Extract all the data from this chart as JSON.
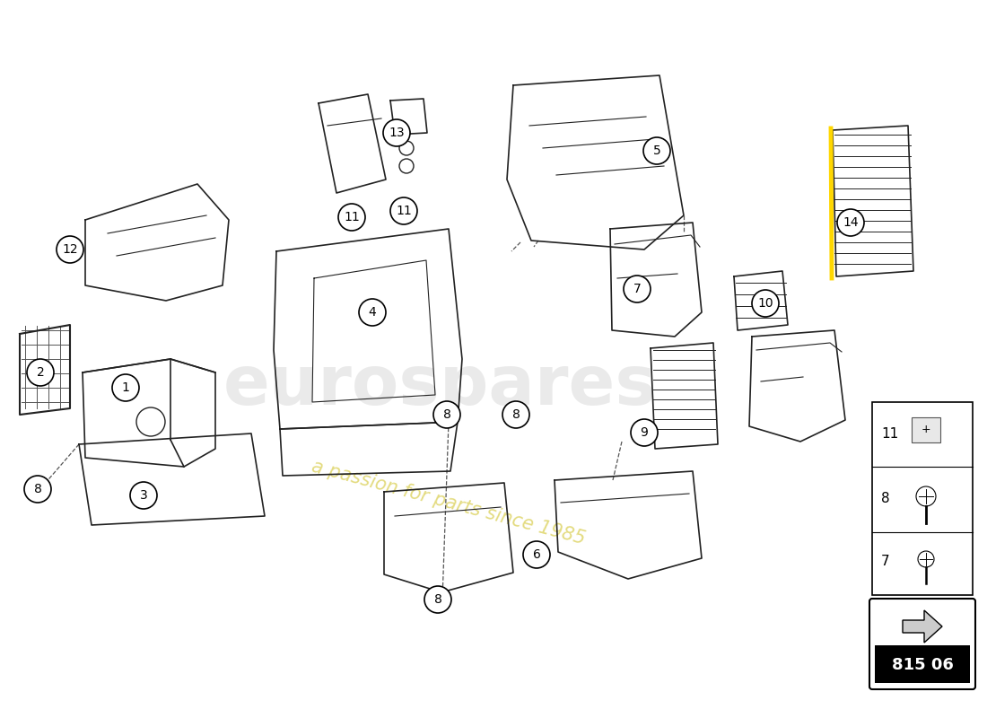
{
  "bg_color": "#ffffff",
  "watermark_text": "eurospares",
  "watermark_subtext": "a passion for parts since 1985",
  "part_number": "815 06",
  "lc": "#222222",
  "lw": 1.2
}
